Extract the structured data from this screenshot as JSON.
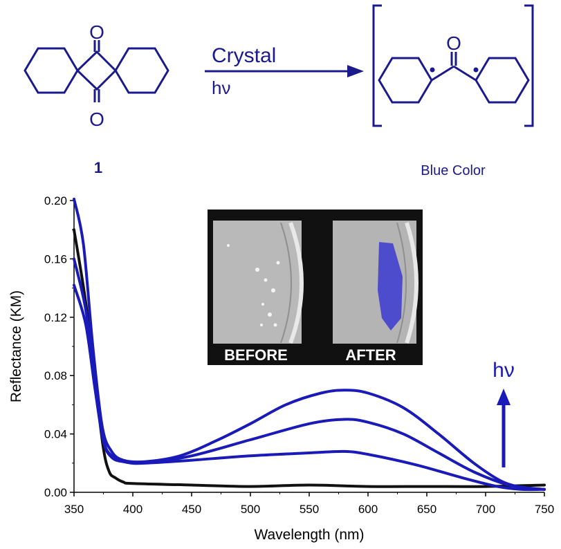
{
  "scheme": {
    "compound_label": "1",
    "arrow_top": "Crystal",
    "arrow_bottom": "hν",
    "product_note": "Blue Color"
  },
  "photo": {
    "before_label": "BEFORE",
    "after_label": "AFTER"
  },
  "chart_data": {
    "type": "line",
    "xlabel": "Wavelength (nm)",
    "ylabel": "Reflectance (KM)",
    "xlim": [
      350,
      750
    ],
    "ylim": [
      0,
      0.2
    ],
    "xticks": [
      350,
      400,
      450,
      500,
      550,
      600,
      650,
      700,
      750
    ],
    "yticks": [
      "0.00",
      "0.04",
      "0.08",
      "0.12",
      "0.16",
      "0.20"
    ],
    "annotation": "hν",
    "grid": false,
    "series": [
      {
        "color": "#111111",
        "points": [
          [
            350,
            0.18
          ],
          [
            360,
            0.13
          ],
          [
            368,
            0.075
          ],
          [
            375,
            0.03
          ],
          [
            380,
            0.014
          ],
          [
            385,
            0.01
          ],
          [
            392,
            0.007
          ],
          [
            400,
            0.006
          ],
          [
            450,
            0.005
          ],
          [
            500,
            0.004
          ],
          [
            550,
            0.005
          ],
          [
            600,
            0.004
          ],
          [
            650,
            0.004
          ],
          [
            700,
            0.004
          ],
          [
            750,
            0.005
          ]
        ]
      },
      {
        "color": "#1a1ab8",
        "points": [
          [
            350,
            0.142
          ],
          [
            360,
            0.115
          ],
          [
            368,
            0.07
          ],
          [
            375,
            0.035
          ],
          [
            382,
            0.024
          ],
          [
            392,
            0.021
          ],
          [
            410,
            0.02
          ],
          [
            450,
            0.022
          ],
          [
            500,
            0.025
          ],
          [
            550,
            0.027
          ],
          [
            580,
            0.028
          ],
          [
            600,
            0.026
          ],
          [
            640,
            0.019
          ],
          [
            680,
            0.01
          ],
          [
            710,
            0.004
          ],
          [
            730,
            0.002
          ],
          [
            750,
            0.002
          ]
        ]
      },
      {
        "color": "#1a1ab8",
        "points": [
          [
            350,
            0.16
          ],
          [
            360,
            0.125
          ],
          [
            368,
            0.075
          ],
          [
            375,
            0.036
          ],
          [
            382,
            0.025
          ],
          [
            392,
            0.021
          ],
          [
            410,
            0.02
          ],
          [
            450,
            0.025
          ],
          [
            500,
            0.036
          ],
          [
            550,
            0.047
          ],
          [
            580,
            0.05
          ],
          [
            600,
            0.048
          ],
          [
            630,
            0.04
          ],
          [
            660,
            0.027
          ],
          [
            690,
            0.014
          ],
          [
            720,
            0.005
          ],
          [
            750,
            0.002
          ]
        ]
      },
      {
        "color": "#1a1ab8",
        "points": [
          [
            350,
            0.201
          ],
          [
            358,
            0.17
          ],
          [
            366,
            0.1
          ],
          [
            374,
            0.045
          ],
          [
            382,
            0.028
          ],
          [
            392,
            0.022
          ],
          [
            410,
            0.021
          ],
          [
            440,
            0.025
          ],
          [
            470,
            0.035
          ],
          [
            500,
            0.047
          ],
          [
            530,
            0.06
          ],
          [
            560,
            0.068
          ],
          [
            580,
            0.07
          ],
          [
            600,
            0.068
          ],
          [
            630,
            0.058
          ],
          [
            660,
            0.04
          ],
          [
            690,
            0.02
          ],
          [
            715,
            0.007
          ],
          [
            735,
            0.003
          ],
          [
            750,
            0.002
          ]
        ]
      }
    ]
  }
}
